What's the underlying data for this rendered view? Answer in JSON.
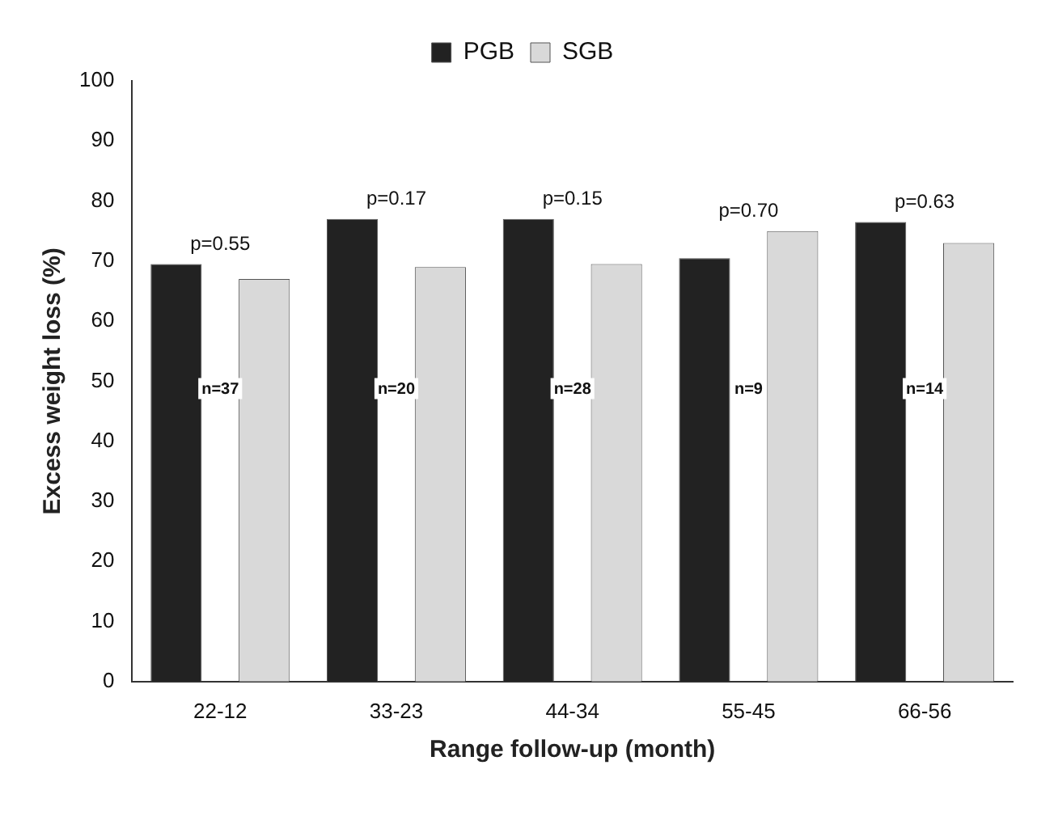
{
  "chart_data": {
    "type": "bar",
    "xlabel": "Range follow-up (month)",
    "ylabel": "Excess weight loss (%)",
    "categories": [
      "22-12",
      "33-23",
      "44-34",
      "55-45",
      "66-56"
    ],
    "series": [
      {
        "name": "PGB",
        "color": "#222222",
        "values": [
          69.5,
          77,
          77,
          70.5,
          76.5
        ]
      },
      {
        "name": "SGB",
        "color": "#d9d9d9",
        "values": [
          67,
          69,
          69.5,
          75,
          73
        ]
      }
    ],
    "ylim": [
      0,
      100
    ],
    "yticks": [
      0,
      10,
      20,
      30,
      40,
      50,
      60,
      70,
      80,
      90,
      100
    ],
    "grid": false,
    "legend": "top",
    "annotations": [
      "p=0.55",
      "p=0.17",
      "p=0.15",
      "p=0.70",
      "p=0.63",
      "n=37",
      "n=20",
      "n=28",
      "n=9",
      "n=14"
    ]
  }
}
